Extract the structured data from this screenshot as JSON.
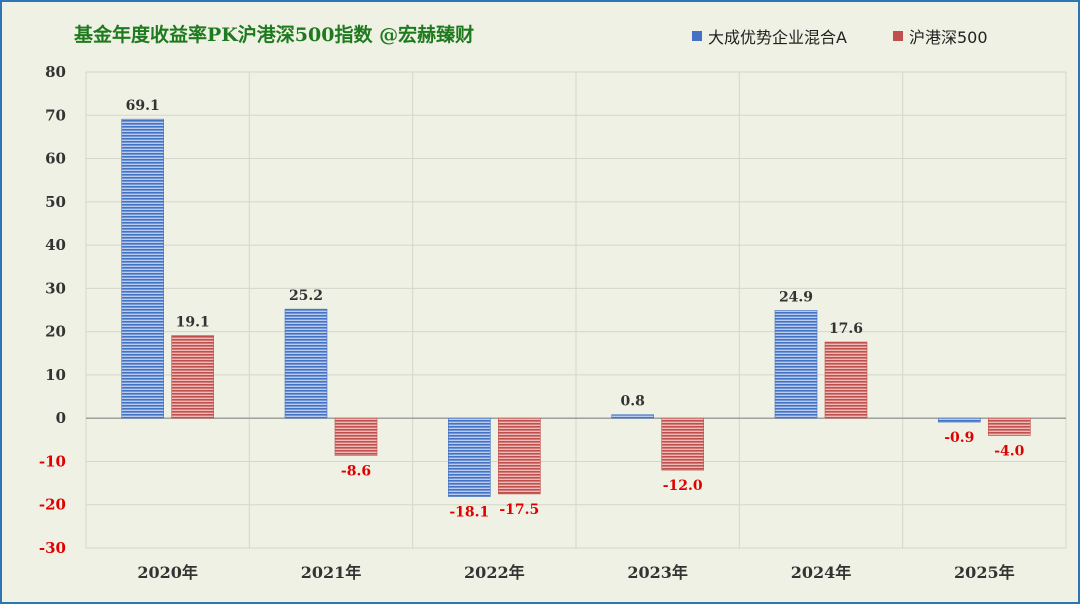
{
  "chart_data": {
    "type": "bar",
    "title": "基金年度收益率PK沪港深500指数   @宏赫臻财",
    "categories": [
      "2020年",
      "2021年",
      "2022年",
      "2023年",
      "2024年",
      "2025年"
    ],
    "series": [
      {
        "name": "大成优势企业混合A",
        "color": "#4472c4",
        "values": [
          69.1,
          25.2,
          -18.1,
          0.8,
          24.9,
          -0.9
        ]
      },
      {
        "name": "沪港深500",
        "color": "#c0504d",
        "values": [
          19.1,
          -8.6,
          -17.5,
          -12.0,
          17.6,
          -4.0
        ]
      }
    ],
    "ylim": [
      -30,
      80
    ],
    "yticks": [
      80,
      70,
      60,
      50,
      40,
      30,
      20,
      10,
      0,
      -10,
      -20,
      -30
    ],
    "grid": true,
    "legend": "top-right",
    "colors": {
      "positive_label": "#333333",
      "negative_label": "#e00000",
      "title": "#1f7a1f",
      "border": "#2e75b6"
    }
  }
}
